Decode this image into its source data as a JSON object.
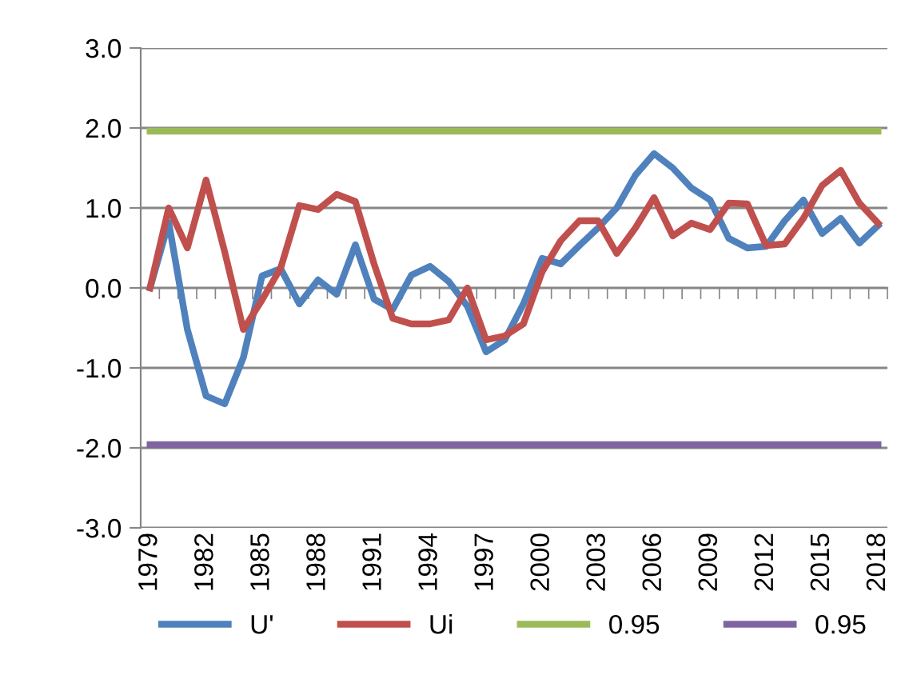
{
  "chart_data": {
    "type": "line",
    "categories": [
      "1979",
      null,
      null,
      "1982",
      null,
      null,
      "1985",
      null,
      null,
      "1988",
      null,
      null,
      "1991",
      null,
      null,
      "1994",
      null,
      null,
      "1997",
      null,
      null,
      "2000",
      null,
      null,
      "2003",
      null,
      null,
      "2006",
      null,
      null,
      "2009",
      null,
      null,
      "2012",
      null,
      null,
      "2015",
      null,
      null,
      "2018"
    ],
    "series": [
      {
        "name": "U'",
        "color": "#4f81bd",
        "values": [
          0,
          0.82,
          -0.52,
          -1.35,
          -1.45,
          -0.87,
          0.15,
          0.24,
          -0.2,
          0.1,
          -0.08,
          0.54,
          -0.14,
          -0.27,
          0.16,
          0.27,
          0.08,
          -0.23,
          -0.8,
          -0.65,
          -0.2,
          0.37,
          0.3,
          0.53,
          0.75,
          1.0,
          1.41,
          1.68,
          1.5,
          1.25,
          1.1,
          0.62,
          0.5,
          0.52,
          0.84,
          1.1,
          0.68,
          0.87,
          0.56,
          0.78
        ]
      },
      {
        "name": "Ui",
        "color": "#c0504d",
        "values": [
          0,
          1.0,
          0.5,
          1.35,
          0.45,
          -0.52,
          -0.15,
          0.25,
          1.03,
          0.98,
          1.17,
          1.08,
          0.3,
          -0.38,
          -0.45,
          -0.45,
          -0.4,
          0,
          -0.65,
          -0.6,
          -0.45,
          0.2,
          0.59,
          0.84,
          0.84,
          0.43,
          0.75,
          1.13,
          0.65,
          0.81,
          0.73,
          1.06,
          1.05,
          0.53,
          0.55,
          0.87,
          1.28,
          1.47,
          1.06,
          0.81
        ]
      },
      {
        "name": "0.95",
        "color": "#9bbb59",
        "values": [
          1.96,
          1.96,
          1.96,
          1.96,
          1.96,
          1.96,
          1.96,
          1.96,
          1.96,
          1.96,
          1.96,
          1.96,
          1.96,
          1.96,
          1.96,
          1.96,
          1.96,
          1.96,
          1.96,
          1.96,
          1.96,
          1.96,
          1.96,
          1.96,
          1.96,
          1.96,
          1.96,
          1.96,
          1.96,
          1.96,
          1.96,
          1.96,
          1.96,
          1.96,
          1.96,
          1.96,
          1.96,
          1.96,
          1.96,
          1.96
        ]
      },
      {
        "name": "0.95",
        "color": "#8064a2",
        "values": [
          -1.96,
          -1.96,
          -1.96,
          -1.96,
          -1.96,
          -1.96,
          -1.96,
          -1.96,
          -1.96,
          -1.96,
          -1.96,
          -1.96,
          -1.96,
          -1.96,
          -1.96,
          -1.96,
          -1.96,
          -1.96,
          -1.96,
          -1.96,
          -1.96,
          -1.96,
          -1.96,
          -1.96,
          -1.96,
          -1.96,
          -1.96,
          -1.96,
          -1.96,
          -1.96,
          -1.96,
          -1.96,
          -1.96,
          -1.96,
          -1.96,
          -1.96,
          -1.96,
          -1.96,
          -1.96,
          -1.96
        ]
      }
    ],
    "ylim": [
      -3,
      3
    ],
    "yticks": [
      {
        "value": -3,
        "label": "-3.0"
      },
      {
        "value": -2,
        "label": "-2.0"
      },
      {
        "value": -1,
        "label": "-1.0"
      },
      {
        "value": 0,
        "label": "0.0"
      },
      {
        "value": 1,
        "label": "1.0"
      },
      {
        "value": 2,
        "label": "2.0"
      },
      {
        "value": 3,
        "label": "3.0"
      }
    ],
    "grid": "y",
    "legend": "bottom",
    "marker": "none",
    "line_style": "solid"
  }
}
